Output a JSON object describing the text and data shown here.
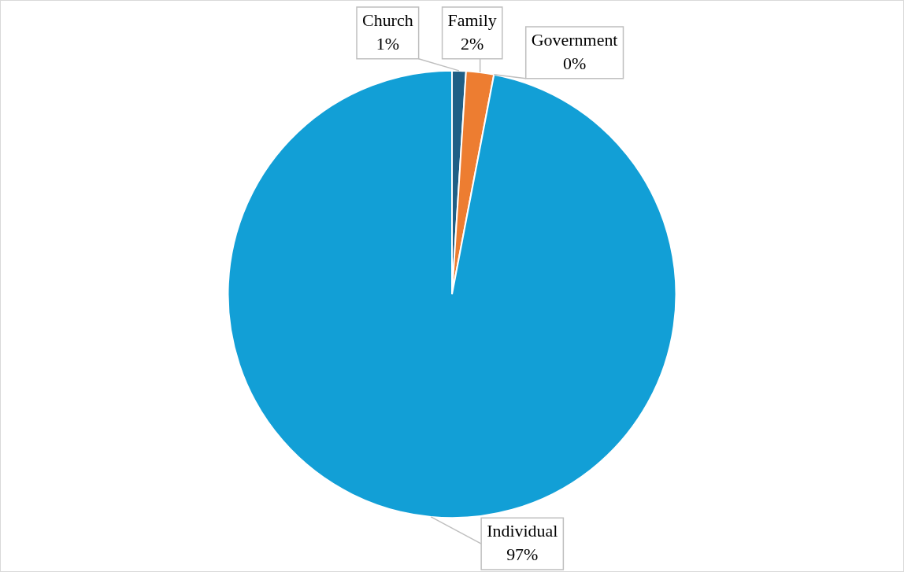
{
  "chart_data": {
    "type": "pie",
    "categories": [
      "Church",
      "Family",
      "Government",
      "Individual"
    ],
    "values": [
      1,
      2,
      0,
      97
    ],
    "colors": [
      "#1f5f86",
      "#ed7d31",
      "#2e7d32",
      "#129fd6"
    ],
    "value_labels": [
      "1%",
      "2%",
      "0%",
      "97%"
    ],
    "legend": false
  }
}
